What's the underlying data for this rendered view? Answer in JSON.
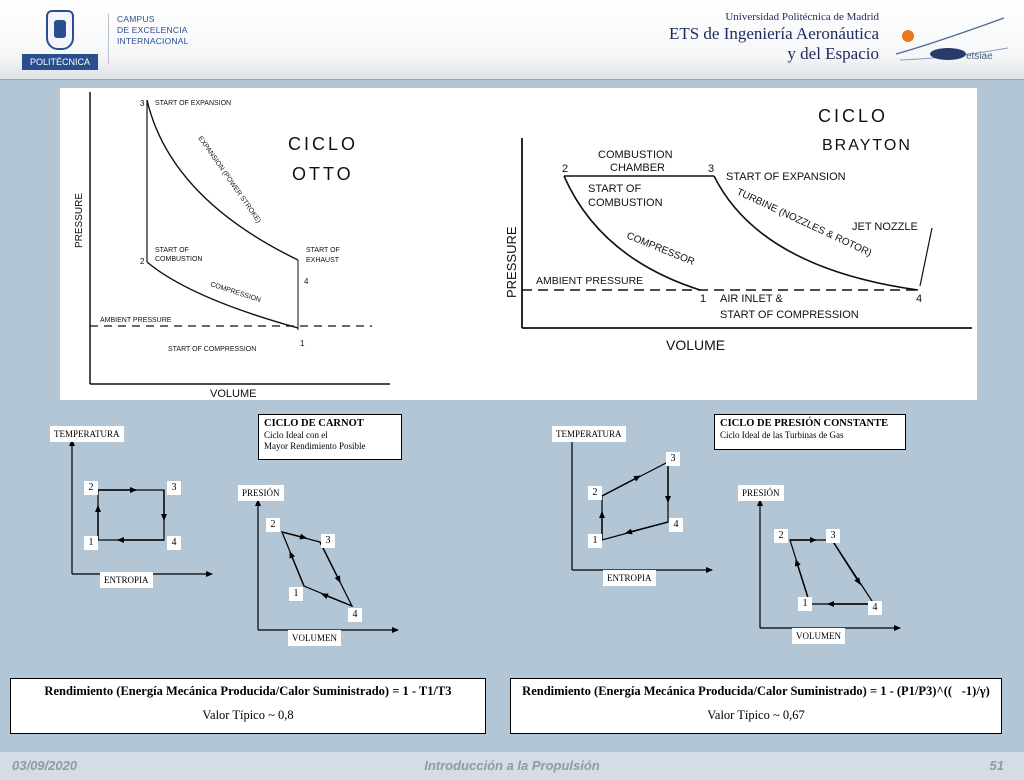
{
  "header": {
    "upm_logo_text": "POLITÉCNICA",
    "campus_lines": [
      "CAMPUS",
      "DE EXCELENCIA",
      "INTERNACIONAL"
    ],
    "university": "Universidad Politécnica de Madrid",
    "school_line1": "ETS de Ingeniería Aeronáutica",
    "school_line2": "y del Espacio",
    "etsiae_logo_text": "etsiae"
  },
  "otto": {
    "title_line1": "CICLO",
    "title_line2": "OTTO",
    "ylabel": "PRESSURE",
    "xlabel": "VOLUME",
    "firing": "FIRING",
    "labels": {
      "start_expansion": "START OF EXPANSION",
      "expansion": "EXPANSION (POWER STROKE)",
      "start_combustion_1": "START OF",
      "start_combustion_2": "COMBUSTION",
      "start_exhaust_1": "START OF",
      "start_exhaust_2": "EXHAUST",
      "compression": "COMPRESSION",
      "ambient": "AMBIENT PRESSURE",
      "start_compression": "START OF COMPRESSION"
    },
    "points": [
      "3",
      "2",
      "4",
      "1"
    ]
  },
  "brayton": {
    "title_line1": "CICLO",
    "title_line2": "BRAYTON",
    "ylabel": "PRESSURE",
    "xlabel": "VOLUME",
    "labels": {
      "chamber_1": "COMBUSTION",
      "chamber_2": "CHAMBER",
      "start_expansion": "START OF EXPANSION",
      "start_combustion_1": "START OF",
      "start_combustion_2": "COMBUSTION",
      "turbine": "TURBINE (NOZZLES & ROTOR)",
      "jet_nozzle": "JET NOZZLE",
      "compressor": "COMPRESSOR",
      "ambient": "AMBIENT PRESSURE",
      "air_inlet": "AIR INLET &",
      "start_compression": "START OF COMPRESSION"
    },
    "points": [
      "2",
      "3",
      "1",
      "4"
    ]
  },
  "carnot": {
    "title": "CICLO DE CARNOT",
    "subtitle_1": "Ciclo Ideal con el",
    "subtitle_2": "Mayor Rendimiento Posible",
    "ts_ylabel": "TEMPERATURA",
    "ts_xlabel": "ENTROPIA",
    "pv_ylabel": "PRESIÓN",
    "pv_xlabel": "VOLUMEN",
    "ts_points": [
      "2",
      "3",
      "1",
      "4"
    ],
    "pv_points": [
      "2",
      "3",
      "1",
      "4"
    ],
    "formula": "Rendimiento (Energía Mecánica Producida/Calor Suministrado) = 1 - T1/T3",
    "typical": "Valor Típico ~ 0,8"
  },
  "brayton_ideal": {
    "title": "CICLO DE PRESIÓN CONSTANTE",
    "subtitle": "Ciclo Ideal de las Turbinas de Gas",
    "ts_ylabel": "TEMPERATURA",
    "ts_xlabel": "ENTROPIA",
    "pv_ylabel": "PRESIÓN",
    "pv_xlabel": "VOLUMEN",
    "ts_points": [
      "3",
      "2",
      "4",
      "1"
    ],
    "pv_points": [
      "2",
      "3",
      "1",
      "4"
    ],
    "formula": "Rendimiento (Energía Mecánica Producida/Calor Suministrado) = 1 - (P1/P3)^((\u0000-1)/γ)",
    "typical": "Valor Típico ~ 0,67"
  },
  "footer": {
    "date": "03/09/2020",
    "course": "Introducción a la Propulsión",
    "page": "51"
  }
}
